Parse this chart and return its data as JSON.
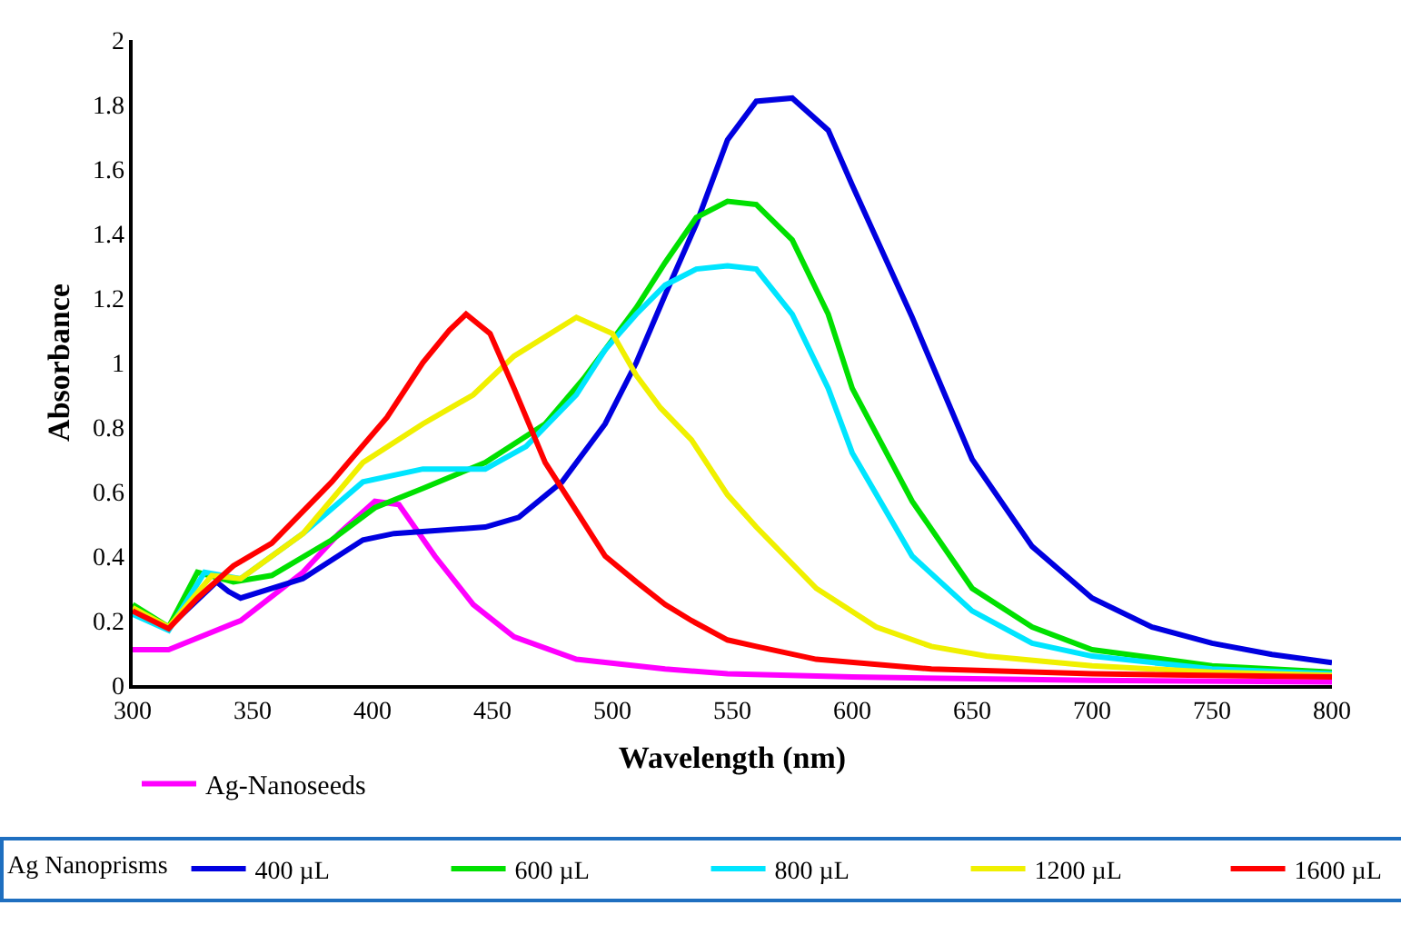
{
  "chart_data": {
    "type": "line",
    "xlabel": "Wavelength (nm)",
    "ylabel": "Absorbance",
    "legend_title": "Ag Nanoprisms",
    "legend": "bottom",
    "marker": "none",
    "line_style": "solid",
    "xlim": [
      300,
      800
    ],
    "xticks": [
      300,
      350,
      400,
      450,
      500,
      550,
      600,
      650,
      700,
      750,
      800
    ],
    "ylim": [
      0,
      2
    ],
    "yticks": [
      0,
      0.2,
      0.4,
      0.6,
      0.8,
      1,
      1.2,
      1.4,
      1.6,
      1.8,
      2
    ],
    "series": [
      {
        "name": "Ag-Nanoseeds",
        "color": "#ff00ff",
        "x": [
          300,
          315,
          345,
          371,
          386,
          401,
          411,
          426,
          442,
          459,
          485,
          522,
          548,
          600,
          700,
          800
        ],
        "values": [
          0.11,
          0.11,
          0.2,
          0.35,
          0.47,
          0.57,
          0.56,
          0.4,
          0.25,
          0.15,
          0.08,
          0.05,
          0.035,
          0.025,
          0.015,
          0.01
        ]
      },
      {
        "name": "400 µL",
        "color": "#0000e0",
        "x": [
          300,
          315,
          325,
          335,
          340,
          345,
          371,
          396,
          409,
          447,
          461,
          479,
          497,
          510,
          522,
          535,
          548,
          560,
          575,
          590,
          600,
          625,
          650,
          675,
          700,
          725,
          750,
          775,
          800
        ],
        "values": [
          0.23,
          0.18,
          0.25,
          0.32,
          0.29,
          0.27,
          0.33,
          0.45,
          0.47,
          0.49,
          0.52,
          0.63,
          0.81,
          1.0,
          1.21,
          1.43,
          1.69,
          1.81,
          1.82,
          1.72,
          1.55,
          1.14,
          0.7,
          0.43,
          0.27,
          0.18,
          0.13,
          0.095,
          0.07
        ]
      },
      {
        "name": "600 µL",
        "color": "#00e000",
        "x": [
          300,
          315,
          327,
          342,
          358,
          383,
          401,
          421,
          447,
          472,
          488,
          497,
          510,
          522,
          535,
          548,
          560,
          575,
          590,
          600,
          625,
          650,
          675,
          700,
          750,
          800
        ],
        "values": [
          0.25,
          0.18,
          0.35,
          0.32,
          0.34,
          0.45,
          0.55,
          0.61,
          0.69,
          0.81,
          0.95,
          1.04,
          1.17,
          1.31,
          1.45,
          1.5,
          1.49,
          1.38,
          1.15,
          0.92,
          0.57,
          0.3,
          0.18,
          0.11,
          0.06,
          0.04
        ]
      },
      {
        "name": "800 µL",
        "color": "#00e5ff",
        "x": [
          300,
          315,
          330,
          345,
          371,
          396,
          421,
          447,
          464,
          485,
          497,
          510,
          522,
          535,
          548,
          560,
          575,
          590,
          600,
          625,
          650,
          675,
          700,
          750,
          800
        ],
        "values": [
          0.22,
          0.17,
          0.35,
          0.33,
          0.47,
          0.63,
          0.67,
          0.67,
          0.74,
          0.9,
          1.04,
          1.15,
          1.24,
          1.29,
          1.3,
          1.29,
          1.15,
          0.92,
          0.72,
          0.4,
          0.23,
          0.13,
          0.09,
          0.05,
          0.035
        ]
      },
      {
        "name": "1200 µL",
        "color": "#f0f000",
        "x": [
          300,
          315,
          333,
          345,
          371,
          396,
          421,
          442,
          459,
          485,
          500,
          510,
          520,
          533,
          548,
          560,
          585,
          610,
          633,
          656,
          700,
          750,
          800
        ],
        "values": [
          0.24,
          0.18,
          0.34,
          0.33,
          0.47,
          0.69,
          0.81,
          0.9,
          1.02,
          1.14,
          1.09,
          0.96,
          0.86,
          0.76,
          0.59,
          0.49,
          0.3,
          0.18,
          0.12,
          0.09,
          0.06,
          0.04,
          0.03
        ]
      },
      {
        "name": "1600 µL",
        "color": "#ff0000",
        "x": [
          300,
          315,
          327,
          342,
          358,
          383,
          406,
          421,
          432,
          439,
          449,
          459,
          472,
          485,
          497,
          510,
          522,
          533,
          548,
          560,
          585,
          633,
          700,
          800
        ],
        "values": [
          0.23,
          0.175,
          0.27,
          0.37,
          0.44,
          0.63,
          0.83,
          1.0,
          1.1,
          1.15,
          1.09,
          0.92,
          0.69,
          0.54,
          0.4,
          0.32,
          0.25,
          0.2,
          0.14,
          0.12,
          0.08,
          0.05,
          0.035,
          0.025
        ]
      }
    ]
  }
}
